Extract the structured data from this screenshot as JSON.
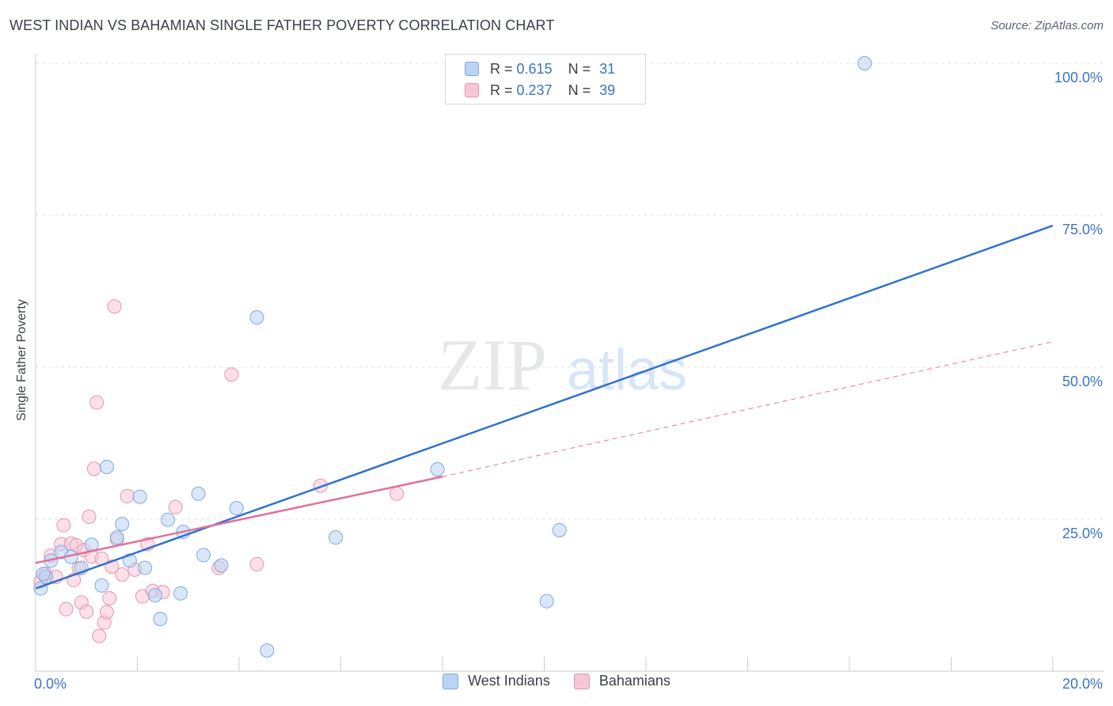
{
  "title": "WEST INDIAN VS BAHAMIAN SINGLE FATHER POVERTY CORRELATION CHART",
  "source": "Source: ZipAtlas.com",
  "watermark": {
    "zip": "ZIP",
    "atlas": "atlas"
  },
  "legend": {
    "rows": [
      {
        "r_label": "R =",
        "r_value": "0.615",
        "n_label": "N =",
        "n_value": "31"
      },
      {
        "r_label": "R =",
        "r_value": "0.237",
        "n_label": "N =",
        "n_value": "39"
      }
    ]
  },
  "bottom_legend": [
    "West Indians",
    "Bahamians"
  ],
  "colors": {
    "blue_fill": "#b9d3f4",
    "blue_stroke": "#7fa8dc",
    "blue_line": "#2f72cf",
    "pink_fill": "#f7c6d5",
    "pink_stroke": "#e595b0",
    "pink_line": "#e0709a",
    "tick_text": "#3a74c4",
    "grid": "#e3e5e9"
  },
  "chart_data": {
    "type": "scatter",
    "title": "WEST INDIAN VS BAHAMIAN SINGLE FATHER POVERTY CORRELATION CHART",
    "xlabel": "",
    "ylabel": "Single Father Poverty",
    "xlim": [
      0,
      20
    ],
    "ylim": [
      0,
      100
    ],
    "x_tick_labels": [
      "0.0%",
      "20.0%"
    ],
    "y_ticks": [
      25,
      50,
      75,
      100
    ],
    "y_tick_labels": [
      "25.0%",
      "50.0%",
      "75.0%",
      "100.0%"
    ],
    "series": [
      {
        "name": "West Indians",
        "r": 0.615,
        "n": 31,
        "points": [
          [
            0.1,
            13.6
          ],
          [
            0.2,
            15.5
          ],
          [
            0.3,
            18.2
          ],
          [
            0.5,
            19.6
          ],
          [
            0.7,
            18.8
          ],
          [
            0.9,
            17.0
          ],
          [
            1.1,
            20.8
          ],
          [
            1.3,
            14.1
          ],
          [
            1.4,
            33.6
          ],
          [
            1.6,
            22.0
          ],
          [
            1.7,
            24.2
          ],
          [
            1.85,
            18.2
          ],
          [
            2.05,
            28.7
          ],
          [
            2.15,
            17.0
          ],
          [
            2.35,
            12.5
          ],
          [
            2.45,
            8.6
          ],
          [
            2.6,
            24.9
          ],
          [
            2.85,
            12.8
          ],
          [
            2.9,
            22.9
          ],
          [
            3.2,
            29.2
          ],
          [
            3.3,
            19.1
          ],
          [
            3.65,
            17.4
          ],
          [
            3.95,
            26.8
          ],
          [
            4.35,
            58.2
          ],
          [
            4.55,
            3.4
          ],
          [
            5.9,
            22.0
          ],
          [
            7.9,
            33.2
          ],
          [
            10.05,
            11.5
          ],
          [
            10.3,
            23.2
          ],
          [
            16.3,
            100.0
          ],
          [
            0.15,
            16.0
          ]
        ],
        "trend": {
          "x1": 0,
          "y1": 13.6,
          "x2": 20,
          "y2": 73.3,
          "style": "solid"
        }
      },
      {
        "name": "Bahamians",
        "r": 0.237,
        "n": 39,
        "points": [
          [
            0.1,
            14.8
          ],
          [
            0.2,
            16.0
          ],
          [
            0.3,
            19.0
          ],
          [
            0.4,
            15.5
          ],
          [
            0.5,
            20.9
          ],
          [
            0.55,
            24.0
          ],
          [
            0.6,
            10.2
          ],
          [
            0.7,
            21.0
          ],
          [
            0.75,
            15.0
          ],
          [
            0.8,
            20.7
          ],
          [
            0.85,
            16.9
          ],
          [
            0.9,
            11.3
          ],
          [
            0.95,
            19.9
          ],
          [
            1.0,
            9.8
          ],
          [
            1.05,
            25.4
          ],
          [
            1.1,
            18.9
          ],
          [
            1.15,
            33.3
          ],
          [
            1.2,
            44.2
          ],
          [
            1.25,
            5.8
          ],
          [
            1.3,
            18.5
          ],
          [
            1.35,
            8.0
          ],
          [
            1.4,
            9.7
          ],
          [
            1.45,
            12.0
          ],
          [
            1.5,
            17.2
          ],
          [
            1.55,
            60.0
          ],
          [
            1.6,
            21.7
          ],
          [
            1.7,
            15.9
          ],
          [
            1.8,
            28.8
          ],
          [
            1.95,
            16.7
          ],
          [
            2.1,
            12.3
          ],
          [
            2.2,
            20.9
          ],
          [
            2.3,
            13.2
          ],
          [
            2.5,
            13.0
          ],
          [
            2.75,
            27.0
          ],
          [
            3.6,
            17.0
          ],
          [
            3.85,
            48.8
          ],
          [
            4.35,
            17.6
          ],
          [
            5.6,
            30.5
          ],
          [
            7.1,
            29.2
          ]
        ],
        "trend": {
          "x1": 0,
          "y1": 17.8,
          "x2": 8.0,
          "y2": 32.0,
          "style": "solid"
        },
        "trend_extension": {
          "x1": 8.0,
          "y1": 32.0,
          "x2": 20,
          "y2": 54.2,
          "style": "dashed"
        }
      }
    ]
  }
}
